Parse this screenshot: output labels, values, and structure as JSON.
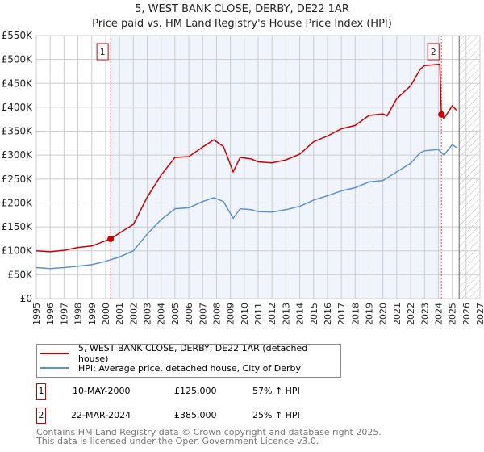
{
  "title": "5, WEST BANK CLOSE, DERBY, DE22 1AR",
  "subtitle": "Price paid vs. HM Land Registry's House Price Index (HPI)",
  "chart_data": {
    "type": "line",
    "title": "5, WEST BANK CLOSE, DERBY, DE22 1AR",
    "xlim": [
      1995,
      2027
    ],
    "ylim": [
      0,
      550000
    ],
    "xticks": [
      "1995",
      "1996",
      "1997",
      "1998",
      "1999",
      "2000",
      "2001",
      "2002",
      "2003",
      "2004",
      "2005",
      "2006",
      "2007",
      "2008",
      "2009",
      "2010",
      "2011",
      "2012",
      "2013",
      "2014",
      "2015",
      "2016",
      "2017",
      "2018",
      "2019",
      "2020",
      "2021",
      "2022",
      "2023",
      "2024",
      "2025",
      "2026",
      "2027"
    ],
    "yticks": [
      {
        "v": 0,
        "label": "£0"
      },
      {
        "v": 50000,
        "label": "£50K"
      },
      {
        "v": 100000,
        "label": "£100K"
      },
      {
        "v": 150000,
        "label": "£150K"
      },
      {
        "v": 200000,
        "label": "£200K"
      },
      {
        "v": 250000,
        "label": "£250K"
      },
      {
        "v": 300000,
        "label": "£300K"
      },
      {
        "v": 350000,
        "label": "£350K"
      },
      {
        "v": 400000,
        "label": "£400K"
      },
      {
        "v": 450000,
        "label": "£450K"
      },
      {
        "v": 500000,
        "label": "£500K"
      },
      {
        "v": 550000,
        "label": "£550K"
      }
    ],
    "grid": true,
    "series": [
      {
        "name": "5, WEST BANK CLOSE, DERBY, DE22 1AR (detached house)",
        "color": "#cc0000",
        "x": [
          1995,
          1996,
          1997,
          1998,
          1999,
          2000.36,
          2001,
          2002,
          2003,
          2004,
          2005,
          2006,
          2007,
          2007.8,
          2008.5,
          2009.2,
          2009.7,
          2010.5,
          2011,
          2012,
          2013,
          2014,
          2015,
          2016,
          2017,
          2018,
          2019,
          2020,
          2020.3,
          2021,
          2022,
          2022.7,
          2023,
          2024.1,
          2024.22,
          2024.4,
          2025,
          2025.3
        ],
        "y": [
          100000,
          98000,
          101000,
          107000,
          110000,
          125000,
          137000,
          155000,
          212000,
          258000,
          295000,
          297000,
          317000,
          332000,
          318000,
          265000,
          295000,
          292000,
          286000,
          284000,
          290000,
          302000,
          328000,
          340000,
          355000,
          362000,
          383000,
          386000,
          382000,
          418000,
          445000,
          480000,
          487000,
          490000,
          385000,
          376000,
          403000,
          394000
        ]
      },
      {
        "name": "HPI: Average price, detached house, City of Derby",
        "color": "#5b8fd6",
        "x": [
          1995,
          1996,
          1997,
          1998,
          1999,
          2000,
          2001,
          2002,
          2003,
          2004,
          2005,
          2006,
          2007,
          2007.8,
          2008.5,
          2009.2,
          2009.7,
          2010.5,
          2011,
          2012,
          2013,
          2014,
          2015,
          2016,
          2017,
          2018,
          2019,
          2020,
          2021,
          2022,
          2022.7,
          2023,
          2024,
          2024.4,
          2025,
          2025.3
        ],
        "y": [
          65000,
          63000,
          65000,
          68000,
          71000,
          78000,
          87000,
          100000,
          135000,
          165000,
          188000,
          190000,
          203000,
          211000,
          203000,
          168000,
          188000,
          186000,
          182000,
          181000,
          186000,
          193000,
          206000,
          215000,
          225000,
          232000,
          244000,
          247000,
          265000,
          283000,
          305000,
          309000,
          312000,
          300000,
          322000,
          316000
        ]
      }
    ],
    "sales": [
      {
        "label": "1",
        "x": 2000.36,
        "y": 125000
      },
      {
        "label": "2",
        "x": 2024.22,
        "y": 385000
      }
    ],
    "shaded_range": [
      2000.36,
      2024.22
    ],
    "forecast_hatch_from": 2025.5
  },
  "legend": [
    "5, WEST BANK CLOSE, DERBY, DE22 1AR (detached house)",
    "HPI: Average price, detached house, City of Derby"
  ],
  "transactions": [
    {
      "n": "1",
      "date": "10-MAY-2000",
      "price": "£125,000",
      "hpi": "57% ↑ HPI"
    },
    {
      "n": "2",
      "date": "22-MAR-2024",
      "price": "£385,000",
      "hpi": "25% ↑ HPI"
    }
  ],
  "footer": [
    "Contains HM Land Registry data © Crown copyright and database right 2025.",
    "This data is licensed under the Open Government Licence v3.0."
  ]
}
